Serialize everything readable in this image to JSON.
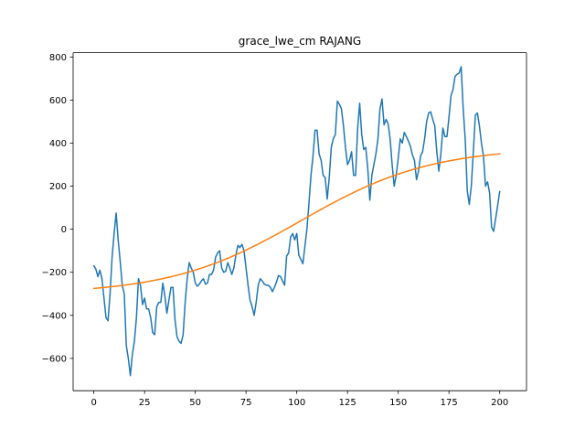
{
  "chart_data": {
    "type": "line",
    "title": "grace_lwe_cm RAJANG",
    "xlabel": "",
    "ylabel": "",
    "xlim": [
      -10.2,
      213.2
    ],
    "ylim": [
      -750,
      820
    ],
    "x_ticks": [
      0,
      25,
      50,
      75,
      100,
      125,
      150,
      175,
      200
    ],
    "y_ticks": [
      -600,
      -400,
      -200,
      0,
      200,
      400,
      600,
      800
    ],
    "grid": false,
    "legend": "none",
    "series": [
      {
        "color": "#1f77b4",
        "values": [
          -170,
          -185,
          -220,
          -190,
          -230,
          -320,
          -410,
          -425,
          -300,
          -130,
          -20,
          75,
          -50,
          -150,
          -260,
          -300,
          -540,
          -600,
          -680,
          -580,
          -520,
          -410,
          -230,
          -260,
          -350,
          -320,
          -370,
          -370,
          -410,
          -480,
          -490,
          -360,
          -340,
          -340,
          -250,
          -310,
          -390,
          -330,
          -270,
          -270,
          -420,
          -500,
          -520,
          -530,
          -490,
          -340,
          -230,
          -155,
          -180,
          -200,
          -250,
          -265,
          -255,
          -240,
          -230,
          -255,
          -250,
          -210,
          -210,
          -190,
          -130,
          -110,
          -100,
          -180,
          -200,
          -195,
          -155,
          -180,
          -210,
          -180,
          -120,
          -75,
          -85,
          -70,
          -100,
          -180,
          -260,
          -330,
          -360,
          -400,
          -340,
          -260,
          -230,
          -240,
          -255,
          -260,
          -260,
          -270,
          -290,
          -270,
          -245,
          -215,
          -220,
          -240,
          -260,
          -125,
          -110,
          -35,
          -20,
          -50,
          -20,
          -120,
          -140,
          -160,
          -80,
          0,
          120,
          250,
          340,
          460,
          460,
          350,
          320,
          250,
          240,
          140,
          240,
          380,
          420,
          440,
          595,
          580,
          560,
          480,
          380,
          300,
          320,
          360,
          250,
          250,
          470,
          585,
          440,
          370,
          380,
          280,
          135,
          250,
          300,
          350,
          420,
          560,
          605,
          485,
          510,
          490,
          420,
          300,
          200,
          250,
          330,
          420,
          400,
          450,
          430,
          410,
          385,
          345,
          320,
          230,
          270,
          340,
          360,
          420,
          500,
          540,
          545,
          510,
          480,
          360,
          270,
          350,
          470,
          430,
          430,
          520,
          620,
          650,
          710,
          720,
          725,
          755,
          560,
          420,
          180,
          115,
          200,
          360,
          530,
          540,
          480,
          400,
          340,
          200,
          220,
          170,
          10,
          -10,
          50,
          110,
          175
        ]
      },
      {
        "color": "#ff7f0e",
        "trend": {
          "kind": "sigmoid-fit",
          "from": -275,
          "to": 350,
          "midpoint": 102,
          "width": 32
        }
      }
    ]
  }
}
